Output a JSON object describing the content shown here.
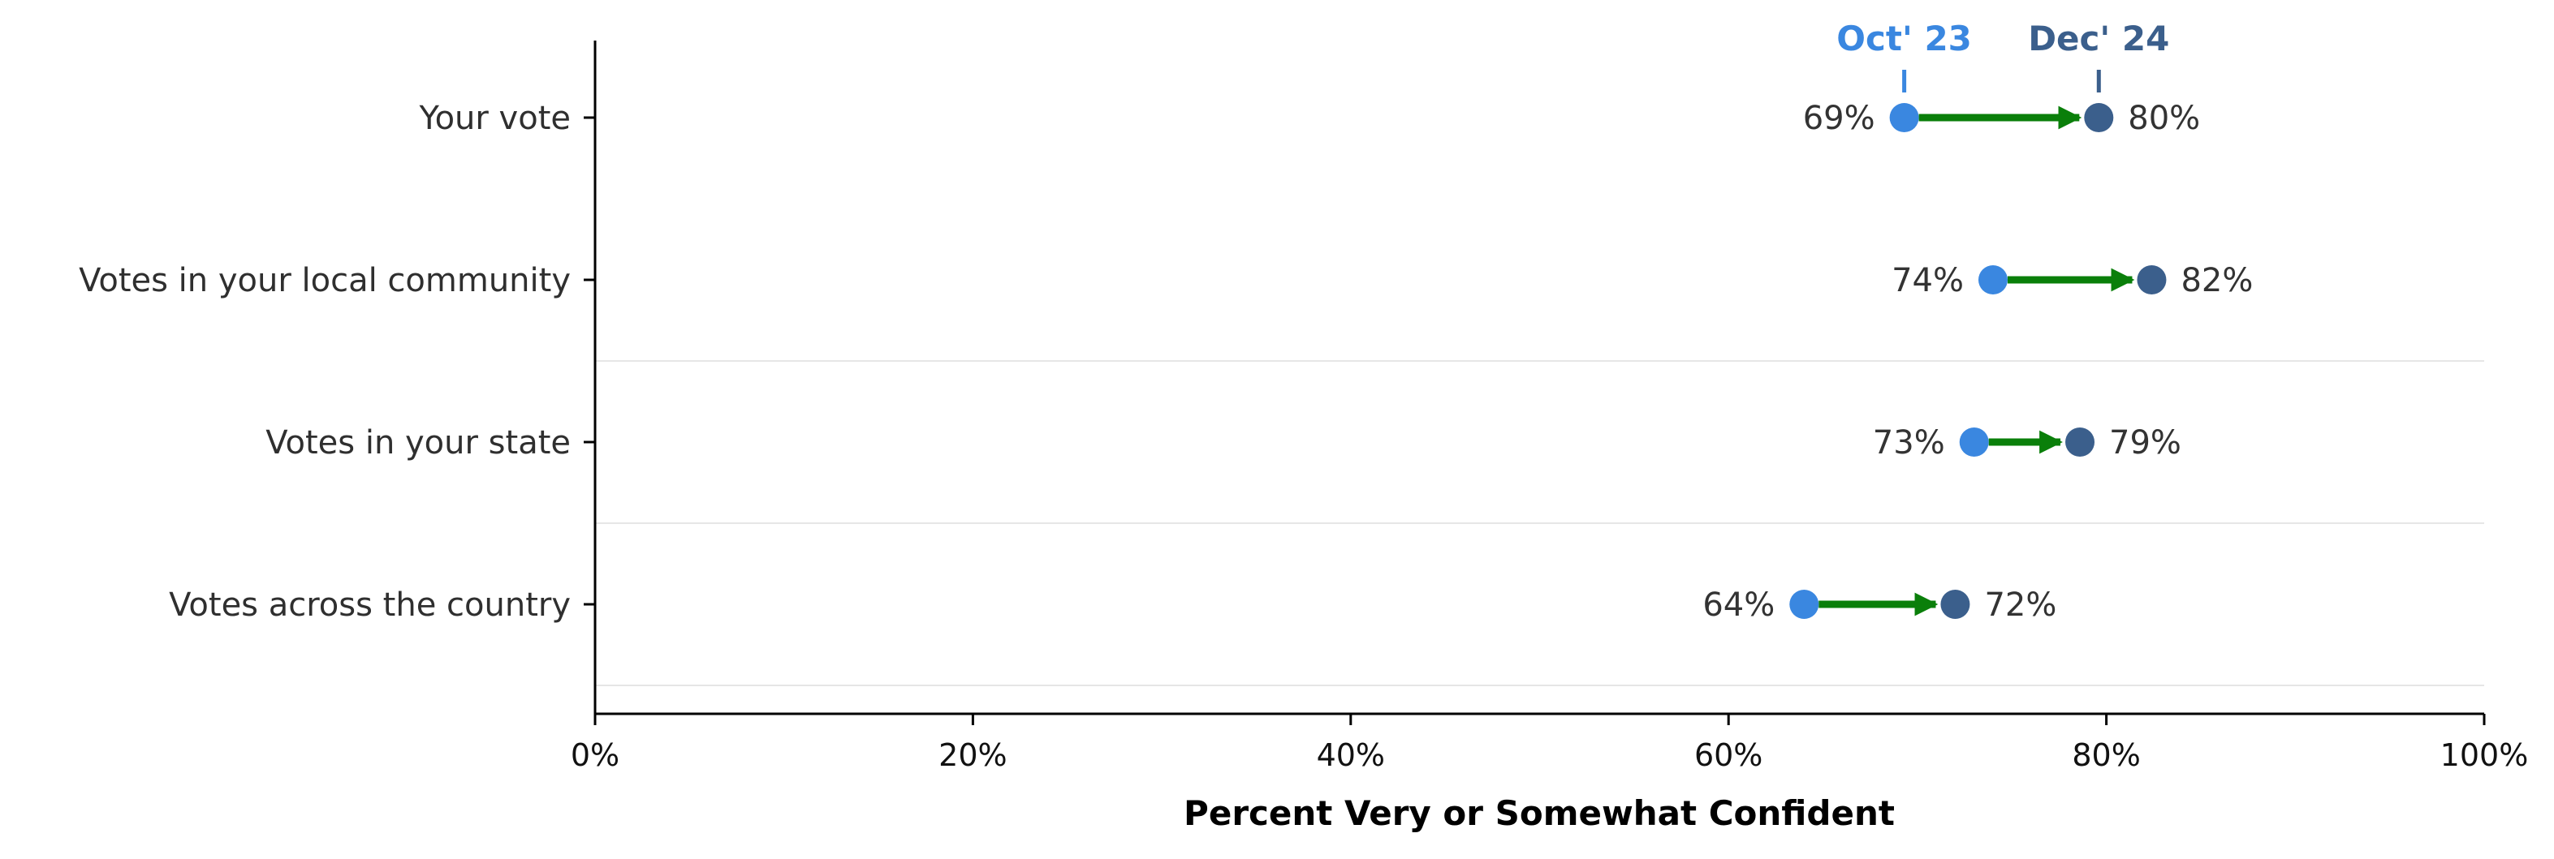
{
  "chart_data": {
    "type": "dot_arrow",
    "xlabel": "Percent Very or Somewhat Confident",
    "ylabel": "",
    "xlim": [
      0,
      100
    ],
    "x_ticks": [
      "0%",
      "20%",
      "40%",
      "60%",
      "80%",
      "100%"
    ],
    "x_tick_values": [
      0,
      20,
      40,
      60,
      80,
      100
    ],
    "categories": [
      "Your vote",
      "Votes in your local community",
      "Votes in your state",
      "Votes across the country"
    ],
    "series": [
      {
        "name": "Oct' 23",
        "color": "#3a87e0",
        "values": [
          69.3,
          74,
          73,
          64
        ]
      },
      {
        "name": "Dec' 24",
        "color": "#3b5f8c",
        "values": [
          79.6,
          82.4,
          78.6,
          72
        ]
      }
    ],
    "value_labels": {
      "start": [
        "69%",
        "74%",
        "73%",
        "64%"
      ],
      "end": [
        "80%",
        "82%",
        "79%",
        "72%"
      ]
    },
    "arrow_color": "#0a7f0a",
    "legend_placement": "top, above first row",
    "grid": "horizontal separators between rows"
  }
}
